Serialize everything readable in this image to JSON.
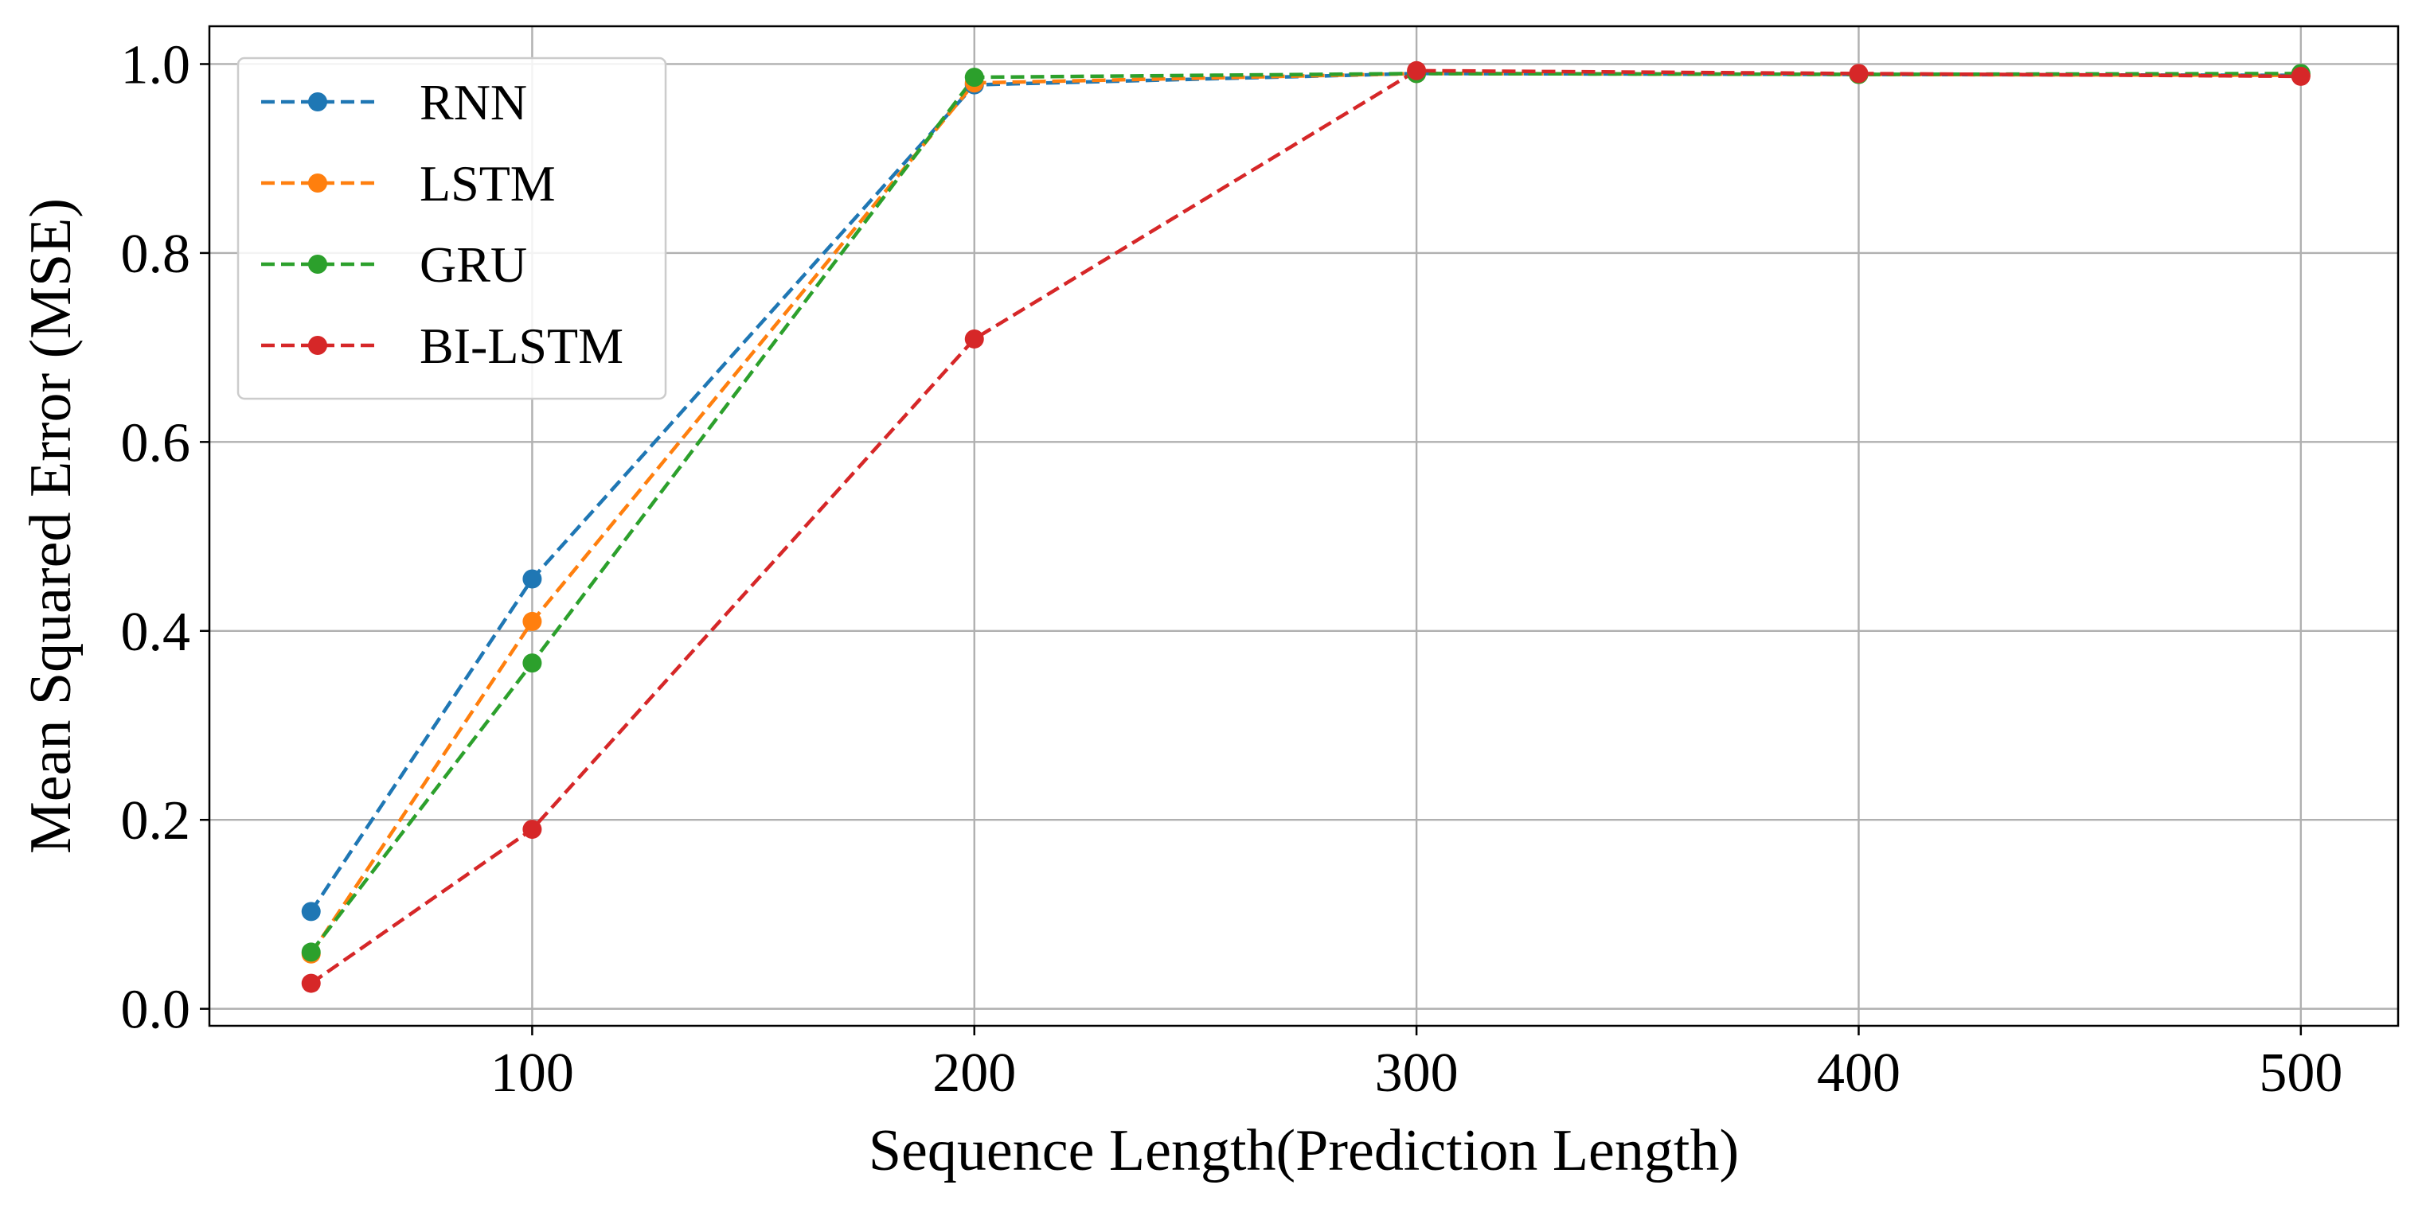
{
  "chart_data": {
    "type": "line",
    "xlabel": "Sequence Length(Prediction Length)",
    "ylabel": "Mean Squared Error (MSE)",
    "x": [
      50,
      100,
      200,
      300,
      400,
      500
    ],
    "xticks": [
      "100",
      "200",
      "300",
      "400",
      "500"
    ],
    "yticks": [
      "0.0",
      "0.2",
      "0.4",
      "0.6",
      "0.8",
      "1.0"
    ],
    "xlim": [
      27,
      522
    ],
    "ylim": [
      -0.018,
      1.04
    ],
    "grid": true,
    "legend_position": "top-left",
    "series": [
      {
        "name": "RNN",
        "color": "#1f77b4",
        "values": [
          0.103,
          0.455,
          0.978,
          0.99,
          0.989,
          0.988
        ]
      },
      {
        "name": "LSTM",
        "color": "#ff7f0e",
        "values": [
          0.058,
          0.41,
          0.98,
          0.99,
          0.989,
          0.988
        ]
      },
      {
        "name": "GRU",
        "color": "#2ca02c",
        "values": [
          0.06,
          0.366,
          0.986,
          0.99,
          0.989,
          0.99
        ]
      },
      {
        "name": "BI-LSTM",
        "color": "#d62728",
        "values": [
          0.027,
          0.19,
          0.709,
          0.993,
          0.99,
          0.987
        ]
      }
    ]
  }
}
